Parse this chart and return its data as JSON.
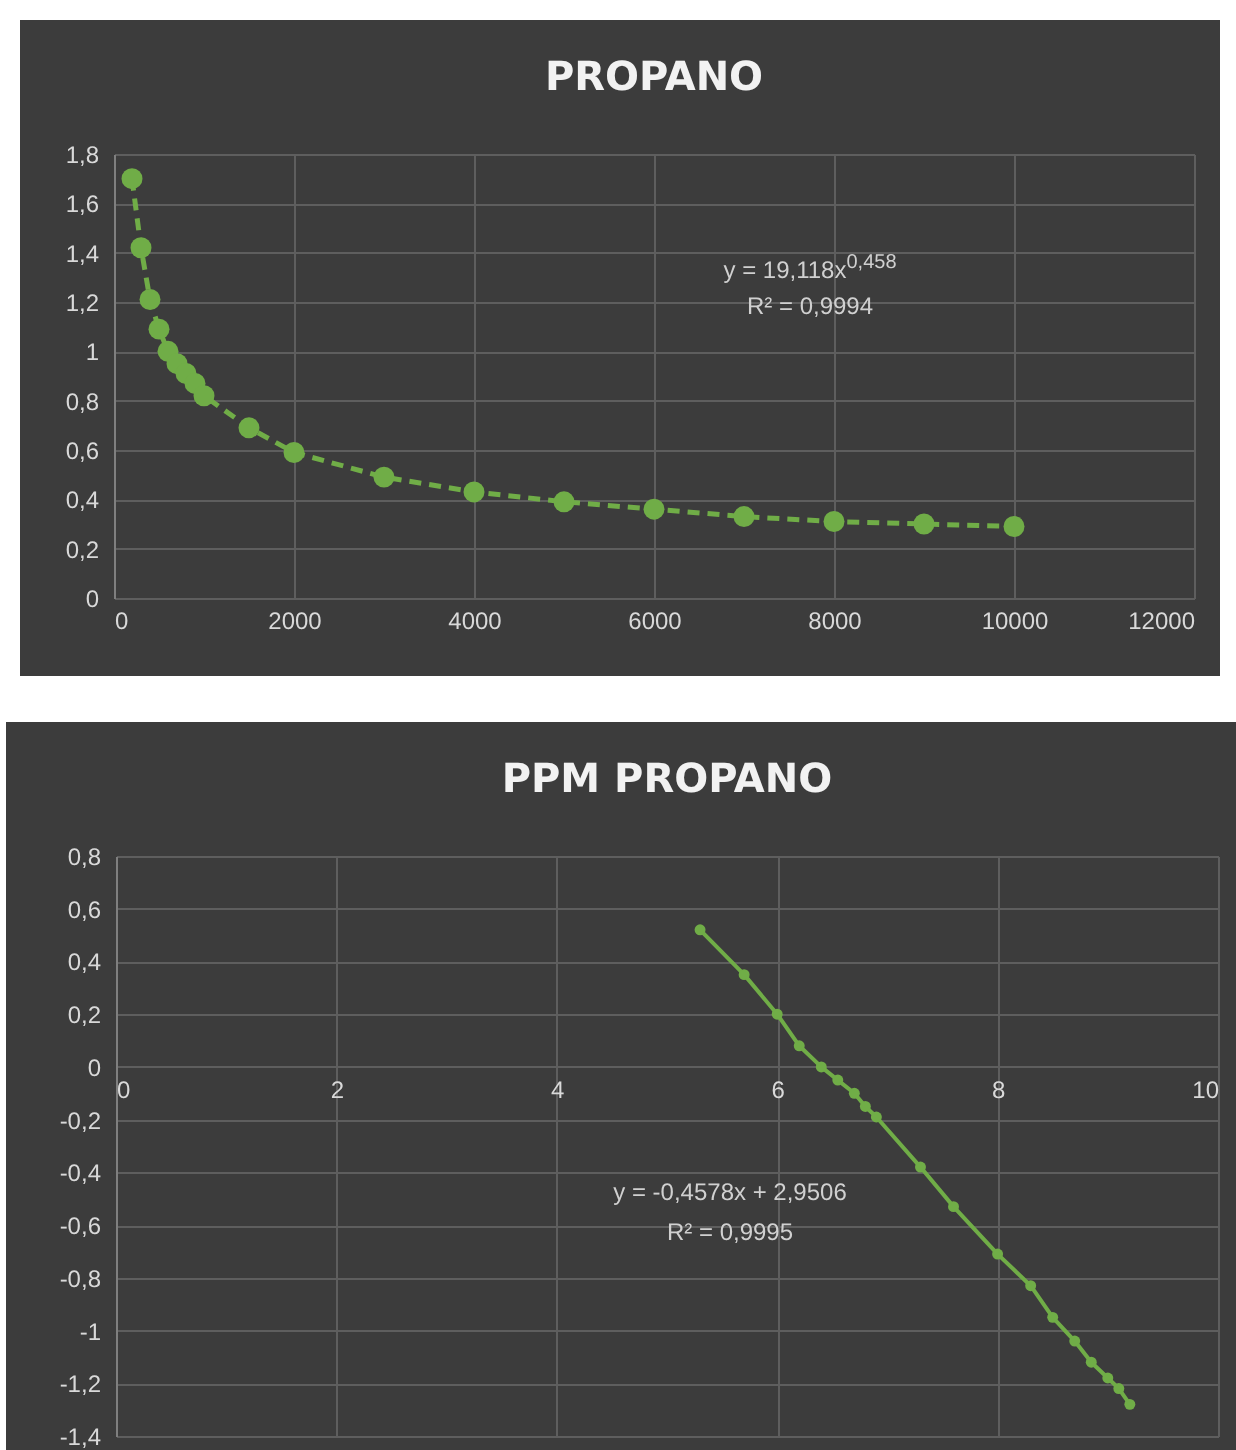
{
  "chart_data": [
    {
      "type": "line",
      "title": "PROPANO",
      "x": [
        200,
        300,
        400,
        500,
        600,
        700,
        800,
        900,
        1000,
        1500,
        2000,
        3000,
        4000,
        5000,
        6000,
        7000,
        8000,
        9000,
        10000
      ],
      "series": [
        {
          "color": "#70ad47",
          "values": [
            1.7,
            1.42,
            1.21,
            1.09,
            1.0,
            0.95,
            0.91,
            0.87,
            0.82,
            0.69,
            0.59,
            0.49,
            0.43,
            0.39,
            0.36,
            0.33,
            0.31,
            0.3,
            0.29
          ]
        }
      ],
      "xlim": [
        0,
        12000
      ],
      "xticks": [
        0,
        2000,
        4000,
        6000,
        8000,
        10000,
        12000
      ],
      "ylim": [
        0,
        1.8
      ],
      "yticks": [
        0,
        {
          "value": 0.2,
          "label": "0,2"
        },
        {
          "value": 0.4,
          "label": "0,4"
        },
        {
          "value": 0.6,
          "label": "0,6"
        },
        {
          "value": 0.8,
          "label": "0,8"
        },
        1,
        {
          "value": 1.2,
          "label": "1,2"
        },
        {
          "value": 1.4,
          "label": "1,4"
        },
        {
          "value": 1.6,
          "label": "1,6"
        },
        {
          "value": 1.8,
          "label": "1,8"
        }
      ],
      "grid": true,
      "marker": "circle",
      "line_style": "dashed",
      "annotations": [
        "y = 19,118x$^{0,458}$",
        "R² = 0,9994"
      ]
    },
    {
      "type": "line",
      "title": "PPM PROPANO",
      "x": [
        5.3,
        5.7,
        6.0,
        6.2,
        6.4,
        6.55,
        6.7,
        6.8,
        6.9,
        7.3,
        7.6,
        8.0,
        8.3,
        8.5,
        8.7,
        8.85,
        9.0,
        9.1,
        9.2
      ],
      "series": [
        {
          "color": "#70ad47",
          "values": [
            0.52,
            0.35,
            0.2,
            0.08,
            0.0,
            -0.05,
            -0.1,
            -0.15,
            -0.19,
            -0.38,
            -0.53,
            -0.71,
            -0.83,
            -0.95,
            -1.04,
            -1.12,
            -1.18,
            -1.22,
            -1.28
          ]
        }
      ],
      "xlim": [
        0,
        10
      ],
      "xticks": [
        0,
        2,
        4,
        6,
        8,
        10
      ],
      "ylim": [
        -1.4,
        0.8
      ],
      "yticks": [
        {
          "value": -1.4,
          "label": "-1,4"
        },
        {
          "value": -1.2,
          "label": "-1,2"
        },
        -1,
        {
          "value": -0.8,
          "label": "-0,8"
        },
        {
          "value": -0.6,
          "label": "-0,6"
        },
        {
          "value": -0.4,
          "label": "-0,4"
        },
        {
          "value": -0.2,
          "label": "-0,2"
        },
        0,
        {
          "value": 0.2,
          "label": "0,2"
        },
        {
          "value": 0.4,
          "label": "0,4"
        },
        {
          "value": 0.6,
          "label": "0,6"
        },
        {
          "value": 0.8,
          "label": "0,8"
        }
      ],
      "grid": true,
      "marker": "circle",
      "line_style": "solid",
      "annotations": [
        "y = -0,4578x + 2,9506",
        "R² = 0,9995"
      ]
    }
  ]
}
